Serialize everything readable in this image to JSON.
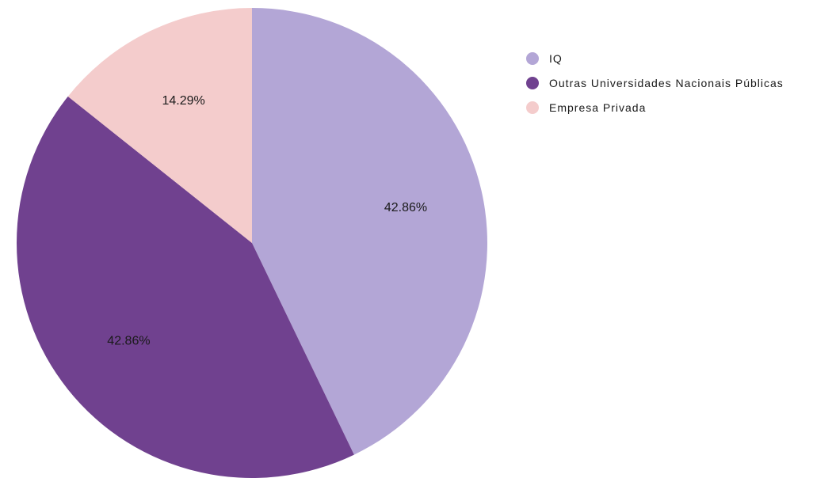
{
  "chart_data": {
    "type": "pie",
    "categories": [
      "IQ",
      "Outras Universidades Nacionais Públicas",
      "Empresa Privada"
    ],
    "values": [
      42.86,
      42.86,
      14.29
    ],
    "labels": [
      "42.86%",
      "42.86%",
      "14.29%"
    ],
    "colors": [
      "#b3a6d6",
      "#70418f",
      "#f4cccc"
    ],
    "start_angle": "12 o'clock",
    "direction": "clockwise",
    "legend_placement": "top-right"
  }
}
